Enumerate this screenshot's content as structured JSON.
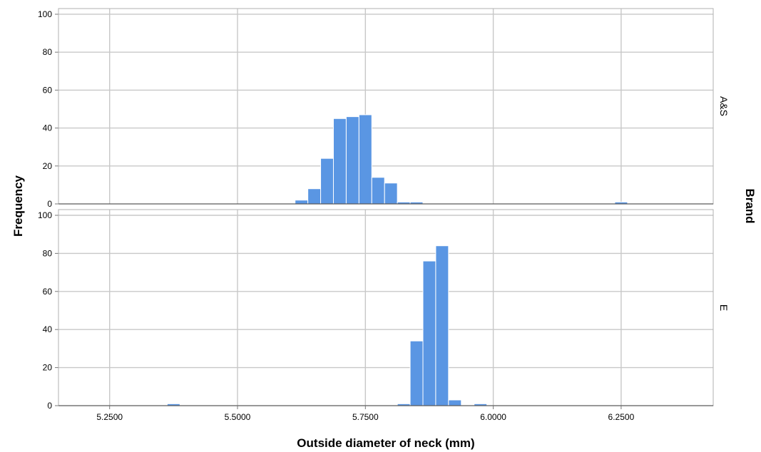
{
  "chart_data": {
    "type": "bar",
    "subtype": "histogram",
    "xlabel": "Outside diameter of neck (mm)",
    "ylabel": "Frequency",
    "facet_title": "Brand",
    "xlim": [
      5.15,
      6.43
    ],
    "x_ticks": [
      "5.2500",
      "5.5000",
      "5.7500",
      "6.0000",
      "6.2500"
    ],
    "x_tick_values": [
      5.25,
      5.5,
      5.75,
      6.0,
      6.25
    ],
    "ylim": [
      0,
      103
    ],
    "y_ticks": [
      0,
      20,
      40,
      60,
      80,
      100
    ],
    "grid": true,
    "bin_width": 0.025,
    "bar_color": "#5a96e3",
    "panels": [
      {
        "label": "A&S",
        "bins": [
          {
            "x0": 5.6125,
            "count": 2
          },
          {
            "x0": 5.6375,
            "count": 8
          },
          {
            "x0": 5.6625,
            "count": 24
          },
          {
            "x0": 5.6875,
            "count": 45
          },
          {
            "x0": 5.7125,
            "count": 46
          },
          {
            "x0": 5.7375,
            "count": 47
          },
          {
            "x0": 5.7625,
            "count": 14
          },
          {
            "x0": 5.7875,
            "count": 11
          },
          {
            "x0": 5.8125,
            "count": 1
          },
          {
            "x0": 5.8375,
            "count": 1
          },
          {
            "x0": 6.2375,
            "count": 1
          }
        ]
      },
      {
        "label": "E",
        "bins": [
          {
            "x0": 5.3625,
            "count": 1
          },
          {
            "x0": 5.8125,
            "count": 1
          },
          {
            "x0": 5.8375,
            "count": 34
          },
          {
            "x0": 5.8625,
            "count": 76
          },
          {
            "x0": 5.8875,
            "count": 84
          },
          {
            "x0": 5.9125,
            "count": 3
          },
          {
            "x0": 5.9625,
            "count": 1
          }
        ]
      }
    ]
  }
}
